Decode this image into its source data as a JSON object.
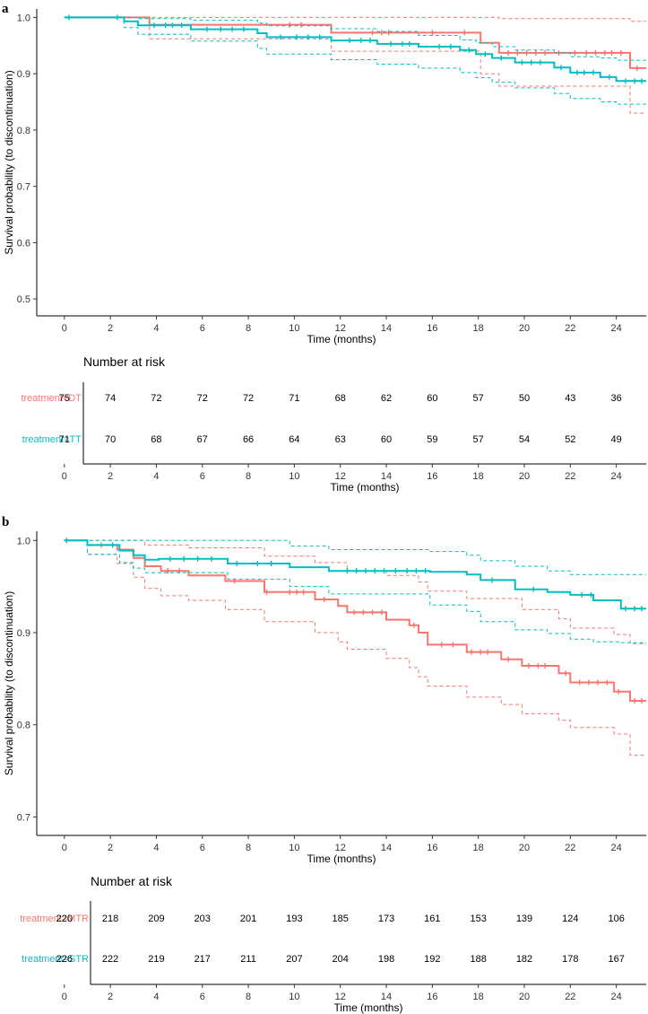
{
  "colors": {
    "group1": "#F8766D",
    "group2": "#00BFC4",
    "axis": "#000000",
    "text": "#333333"
  },
  "chart_data": [
    {
      "type": "line",
      "panel_label": "a",
      "ylabel": "Survival probability (to discontinuation)",
      "xlabel": "Time (months)",
      "xlim": [
        -1.2,
        25.3
      ],
      "ylim": [
        0.47,
        1.015
      ],
      "x_ticks": [
        0,
        2,
        4,
        6,
        8,
        10,
        12,
        14,
        16,
        18,
        20,
        22,
        24
      ],
      "y_ticks": [
        0.5,
        0.6,
        0.7,
        0.8,
        0.9,
        1.0
      ],
      "y_tick_labels": [
        "0.5",
        "0.6",
        "0.7",
        "0.8",
        "0.9",
        "1.0"
      ],
      "series": [
        {
          "name": "treatment=DT",
          "color_key": "group1",
          "steps": [
            [
              0,
              1.0
            ],
            [
              3.7,
              0.987
            ],
            [
              11.6,
              0.973
            ],
            [
              18.1,
              0.955
            ],
            [
              18.9,
              0.937
            ],
            [
              24.6,
              0.91
            ],
            [
              25.3,
              0.91
            ]
          ],
          "lower": [
            [
              0,
              1.0
            ],
            [
              3.7,
              0.962
            ],
            [
              11.6,
              0.94
            ],
            [
              18.1,
              0.9
            ],
            [
              18.9,
              0.878
            ],
            [
              24.6,
              0.83
            ],
            [
              25.3,
              0.83
            ]
          ],
          "upper": [
            [
              0,
              1.0
            ],
            [
              18.9,
              0.998
            ],
            [
              24.6,
              0.993
            ],
            [
              25.3,
              0.993
            ]
          ],
          "censor_times": [
            9.8,
            10.3,
            13.4,
            13.8,
            14.1,
            16.0,
            17.4,
            19.3,
            19.7,
            20.1,
            20.5,
            20.9,
            21.5,
            22.2,
            22.7,
            23.1,
            23.5,
            23.8,
            24.2,
            24.9
          ]
        },
        {
          "name": "treatment=TT",
          "color_key": "group2",
          "steps": [
            [
              0,
              1.0
            ],
            [
              2.6,
              0.993
            ],
            [
              3.2,
              0.986
            ],
            [
              5.5,
              0.979
            ],
            [
              8.4,
              0.972
            ],
            [
              8.8,
              0.965
            ],
            [
              11.6,
              0.959
            ],
            [
              13.6,
              0.953
            ],
            [
              15.4,
              0.948
            ],
            [
              17.2,
              0.942
            ],
            [
              17.9,
              0.935
            ],
            [
              18.6,
              0.928
            ],
            [
              19.6,
              0.92
            ],
            [
              21.3,
              0.911
            ],
            [
              22.0,
              0.902
            ],
            [
              23.3,
              0.894
            ],
            [
              24.0,
              0.887
            ],
            [
              25.3,
              0.887
            ]
          ],
          "lower": [
            [
              0,
              1.0
            ],
            [
              2.6,
              0.982
            ],
            [
              3.2,
              0.97
            ],
            [
              5.5,
              0.958
            ],
            [
              8.4,
              0.945
            ],
            [
              8.8,
              0.935
            ],
            [
              11.6,
              0.925
            ],
            [
              13.6,
              0.917
            ],
            [
              15.4,
              0.91
            ],
            [
              17.2,
              0.902
            ],
            [
              17.9,
              0.893
            ],
            [
              18.6,
              0.885
            ],
            [
              19.6,
              0.875
            ],
            [
              21.3,
              0.865
            ],
            [
              22.0,
              0.856
            ],
            [
              23.3,
              0.85
            ],
            [
              24.0,
              0.846
            ],
            [
              25.3,
              0.846
            ]
          ],
          "upper": [
            [
              0,
              1.0
            ],
            [
              2.6,
              1.0
            ],
            [
              3.2,
              0.998
            ],
            [
              5.5,
              0.995
            ],
            [
              8.4,
              0.99
            ],
            [
              8.8,
              0.985
            ],
            [
              11.6,
              0.98
            ],
            [
              13.6,
              0.975
            ],
            [
              15.4,
              0.968
            ],
            [
              17.2,
              0.96
            ],
            [
              17.9,
              0.955
            ],
            [
              18.6,
              0.948
            ],
            [
              19.6,
              0.942
            ],
            [
              21.3,
              0.937
            ],
            [
              22.0,
              0.93
            ],
            [
              23.3,
              0.928
            ],
            [
              24.0,
              0.924
            ],
            [
              25.3,
              0.924
            ]
          ],
          "censor_times": [
            0.2,
            2.3,
            3.9,
            4.4,
            4.7,
            5.1,
            6.2,
            6.8,
            7.3,
            7.8,
            9.4,
            10.1,
            10.6,
            11.1,
            12.4,
            12.9,
            13.3,
            14.2,
            14.7,
            15.0,
            16.3,
            16.8,
            17.6,
            18.3,
            19.0,
            19.9,
            20.3,
            20.7,
            21.6,
            22.3,
            22.6,
            23.0,
            23.7,
            24.4,
            24.8,
            25.1
          ]
        }
      ],
      "risk_table": {
        "title": "Number at risk",
        "times": [
          "0",
          "2",
          "4",
          "6",
          "8",
          "10",
          "12",
          "14",
          "16",
          "18",
          "20",
          "22",
          "24"
        ],
        "xlabel": "Time (months)",
        "groups": [
          {
            "name": "treatment=DT",
            "color_key": "group1",
            "values": [
              "75",
              "74",
              "72",
              "72",
              "72",
              "71",
              "68",
              "62",
              "60",
              "57",
              "50",
              "43",
              "36"
            ]
          },
          {
            "name": "treatment=TT",
            "color_key": "group2",
            "values": [
              "71",
              "70",
              "68",
              "67",
              "66",
              "64",
              "63",
              "60",
              "59",
              "57",
              "54",
              "52",
              "49"
            ]
          }
        ]
      }
    },
    {
      "type": "line",
      "panel_label": "b",
      "ylabel": "Survival probability (to discontinuation)",
      "xlabel": "Time (months)",
      "xlim": [
        -1.2,
        25.3
      ],
      "ylim": [
        0.68,
        1.01
      ],
      "x_ticks": [
        0,
        2,
        4,
        6,
        8,
        10,
        12,
        14,
        16,
        18,
        20,
        22,
        24
      ],
      "y_ticks": [
        0.7,
        0.8,
        0.9,
        1.0
      ],
      "y_tick_labels": [
        "0.7",
        "0.8",
        "0.9",
        "1.0"
      ],
      "series": [
        {
          "name": "treatment=MTR",
          "color_key": "group1",
          "steps": [
            [
              0,
              1.0
            ],
            [
              1.0,
              0.995
            ],
            [
              2.3,
              0.99
            ],
            [
              3.0,
              0.981
            ],
            [
              3.5,
              0.972
            ],
            [
              4.2,
              0.967
            ],
            [
              5.4,
              0.962
            ],
            [
              7.0,
              0.956
            ],
            [
              8.7,
              0.944
            ],
            [
              10.9,
              0.936
            ],
            [
              11.9,
              0.929
            ],
            [
              12.3,
              0.922
            ],
            [
              14.0,
              0.914
            ],
            [
              15.0,
              0.908
            ],
            [
              15.4,
              0.9
            ],
            [
              15.8,
              0.887
            ],
            [
              17.5,
              0.879
            ],
            [
              19.0,
              0.871
            ],
            [
              19.9,
              0.864
            ],
            [
              21.5,
              0.856
            ],
            [
              22.0,
              0.846
            ],
            [
              23.9,
              0.836
            ],
            [
              24.6,
              0.826
            ],
            [
              25.3,
              0.826
            ]
          ],
          "lower": [
            [
              0,
              1.0
            ],
            [
              1.0,
              0.985
            ],
            [
              2.3,
              0.975
            ],
            [
              3.0,
              0.96
            ],
            [
              3.5,
              0.948
            ],
            [
              4.2,
              0.94
            ],
            [
              5.4,
              0.935
            ],
            [
              7.0,
              0.925
            ],
            [
              8.7,
              0.912
            ],
            [
              10.9,
              0.9
            ],
            [
              11.9,
              0.89
            ],
            [
              12.3,
              0.882
            ],
            [
              14.0,
              0.872
            ],
            [
              15.0,
              0.862
            ],
            [
              15.4,
              0.852
            ],
            [
              15.8,
              0.842
            ],
            [
              17.5,
              0.83
            ],
            [
              19.0,
              0.822
            ],
            [
              19.9,
              0.812
            ],
            [
              21.5,
              0.805
            ],
            [
              22.0,
              0.797
            ],
            [
              23.9,
              0.79
            ],
            [
              24.6,
              0.767
            ],
            [
              25.3,
              0.767
            ]
          ],
          "upper": [
            [
              0,
              1.0
            ],
            [
              1.0,
              1.0
            ],
            [
              3.5,
              0.995
            ],
            [
              5.4,
              0.992
            ],
            [
              8.7,
              0.983
            ],
            [
              10.9,
              0.976
            ],
            [
              12.3,
              0.967
            ],
            [
              14.0,
              0.962
            ],
            [
              15.4,
              0.955
            ],
            [
              15.8,
              0.945
            ],
            [
              17.5,
              0.937
            ],
            [
              19.9,
              0.925
            ],
            [
              21.5,
              0.915
            ],
            [
              22.0,
              0.905
            ],
            [
              23.9,
              0.898
            ],
            [
              24.6,
              0.888
            ],
            [
              25.3,
              0.888
            ]
          ],
          "censor_times": [
            1.6,
            4.5,
            5.0,
            7.4,
            8.8,
            9.8,
            10.1,
            10.4,
            11.3,
            12.6,
            13.0,
            13.4,
            13.8,
            15.2,
            16.4,
            16.9,
            17.7,
            18.1,
            18.4,
            19.3,
            20.2,
            20.6,
            20.9,
            21.8,
            22.4,
            22.8,
            23.2,
            23.6,
            24.1,
            24.8,
            25.1
          ]
        },
        {
          "name": "treatment=STR",
          "color_key": "group2",
          "steps": [
            [
              0,
              1.0
            ],
            [
              1.0,
              0.995
            ],
            [
              2.4,
              0.989
            ],
            [
              3.0,
              0.984
            ],
            [
              3.5,
              0.979
            ],
            [
              4.1,
              0.98
            ],
            [
              7.1,
              0.975
            ],
            [
              9.8,
              0.971
            ],
            [
              11.5,
              0.967
            ],
            [
              15.9,
              0.966
            ],
            [
              17.5,
              0.963
            ],
            [
              18.1,
              0.957
            ],
            [
              19.6,
              0.947
            ],
            [
              21.0,
              0.944
            ],
            [
              22.0,
              0.941
            ],
            [
              23.0,
              0.935
            ],
            [
              24.2,
              0.926
            ],
            [
              25.3,
              0.926
            ]
          ],
          "lower": [
            [
              0,
              1.0
            ],
            [
              1.0,
              0.985
            ],
            [
              2.4,
              0.976
            ],
            [
              3.0,
              0.97
            ],
            [
              3.5,
              0.965
            ],
            [
              7.1,
              0.958
            ],
            [
              9.8,
              0.95
            ],
            [
              11.5,
              0.942
            ],
            [
              15.9,
              0.93
            ],
            [
              17.5,
              0.923
            ],
            [
              18.1,
              0.912
            ],
            [
              19.6,
              0.903
            ],
            [
              21.0,
              0.899
            ],
            [
              22.0,
              0.893
            ],
            [
              23.0,
              0.89
            ],
            [
              24.2,
              0.889
            ],
            [
              25.3,
              0.889
            ]
          ],
          "upper": [
            [
              0,
              1.0
            ],
            [
              4.1,
              1.0
            ],
            [
              9.8,
              0.994
            ],
            [
              11.5,
              0.99
            ],
            [
              15.9,
              0.988
            ],
            [
              17.5,
              0.984
            ],
            [
              18.1,
              0.978
            ],
            [
              19.6,
              0.972
            ],
            [
              21.0,
              0.967
            ],
            [
              22.0,
              0.963
            ],
            [
              25.3,
              0.963
            ]
          ],
          "censor_times": [
            0.1,
            2.1,
            4.6,
            5.2,
            5.8,
            6.4,
            7.5,
            8.4,
            9.0,
            12.3,
            12.7,
            13.1,
            13.5,
            13.9,
            14.4,
            14.9,
            15.3,
            15.7,
            18.6,
            20.4,
            22.5,
            22.9,
            24.4,
            24.8,
            25.1
          ]
        }
      ],
      "risk_table": {
        "title": "Number at risk",
        "times": [
          "0",
          "2",
          "4",
          "6",
          "8",
          "10",
          "12",
          "14",
          "16",
          "18",
          "20",
          "22",
          "24"
        ],
        "xlabel": "Time (months)",
        "groups": [
          {
            "name": "treatment=MTR",
            "color_key": "group1",
            "values": [
              "220",
              "218",
              "209",
              "203",
              "201",
              "193",
              "185",
              "173",
              "161",
              "153",
              "139",
              "124",
              "106"
            ]
          },
          {
            "name": "treatment=STR",
            "color_key": "group2",
            "values": [
              "226",
              "222",
              "219",
              "217",
              "211",
              "207",
              "204",
              "198",
              "192",
              "188",
              "182",
              "178",
              "167"
            ]
          }
        ]
      }
    }
  ]
}
